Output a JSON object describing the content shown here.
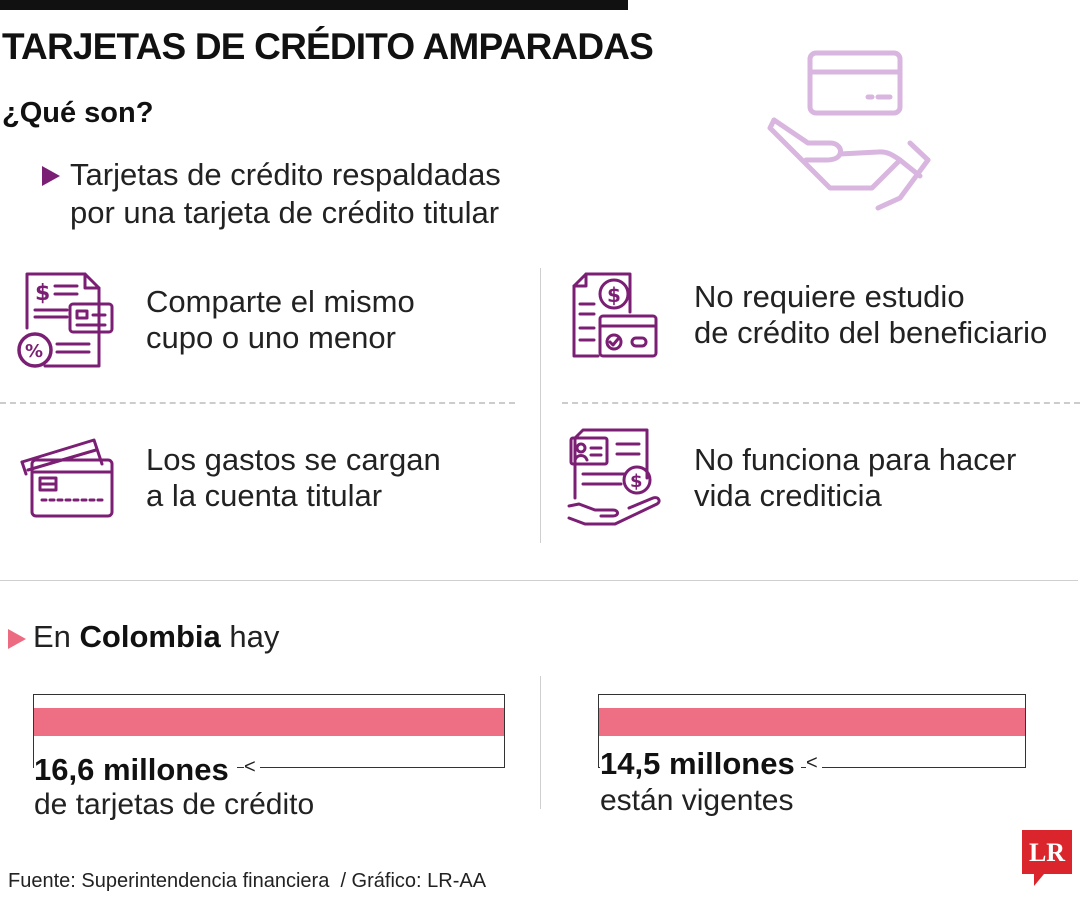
{
  "header": {
    "title": "TARJETAS DE CRÉDITO AMPARADAS",
    "subtitle": "¿Qué son?"
  },
  "definition": {
    "text": "Tarjetas de crédito respaldadas\npor una tarjeta de crédito titular"
  },
  "features": [
    {
      "icon": "receipt-card-percent-icon",
      "text": "Comparte el mismo\ncupo o uno menor"
    },
    {
      "icon": "document-card-dollar-icon",
      "text": "No requiere estudio\nde crédito del beneficiario"
    },
    {
      "icon": "credit-cards-icon",
      "text": "Los gastos se cargan\na la cuenta titular"
    },
    {
      "icon": "id-document-hand-icon",
      "text": "No funciona para hacer\nvida crediticia"
    }
  ],
  "colombia": {
    "prefix": "En ",
    "country": "Colombia",
    "suffix": " hay"
  },
  "stats": [
    {
      "value": "16,6 millones",
      "label": "de tarjetas de crédito",
      "amount": 16.6
    },
    {
      "value": "14,5 millones",
      "label": "están vigentes",
      "amount": 14.5
    }
  ],
  "footer": {
    "source": "Fuente: Superintendencia financiera  / Gráfico: LR-AA",
    "logo_text": "LR"
  },
  "colors": {
    "accent_purple": "#7b1f74",
    "icon_light_purple": "#d9b6df",
    "bar_pink": "#ee6f84",
    "logo_red": "#d9252b"
  }
}
